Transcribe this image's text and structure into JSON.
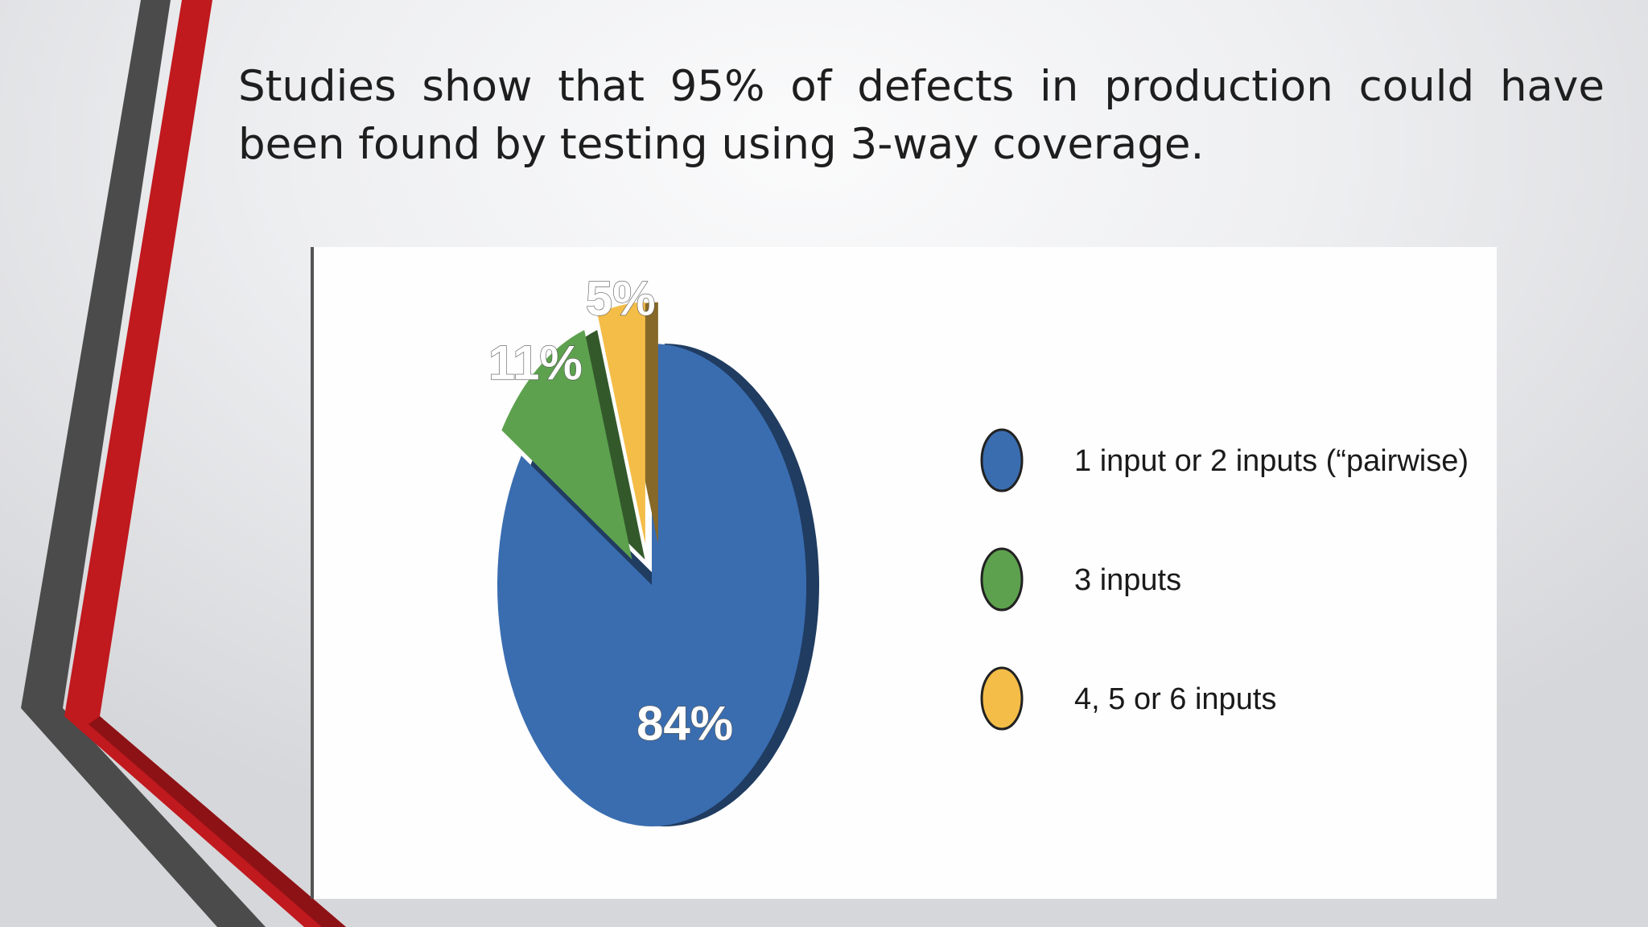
{
  "slide": {
    "title": "Studies show that 95% of defects in production could have been found by testing using 3-way coverage."
  },
  "chart_data": {
    "type": "pie",
    "title": "",
    "categories": [
      "1 input or 2 inputs (“pairwise)",
      "3 inputs",
      "4, 5 or 6 inputs"
    ],
    "values": [
      84,
      11,
      5
    ],
    "labels": [
      "84%",
      "11%",
      "5%"
    ],
    "colors": [
      "#3a6db0",
      "#5da14e",
      "#f4bd48"
    ],
    "exploded": [
      false,
      true,
      true
    ],
    "legend": "right"
  },
  "theme": {
    "accent_red": "#c0191e",
    "accent_gray": "#4b4b4b"
  }
}
